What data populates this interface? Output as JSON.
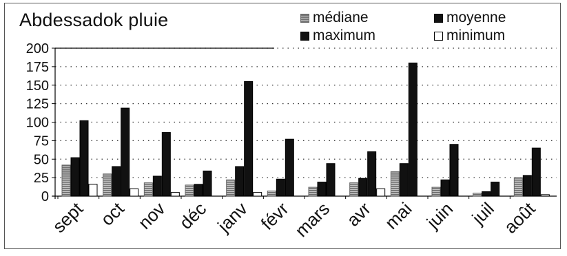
{
  "chart_data": {
    "type": "bar",
    "title": "Abdessadok pluie",
    "xlabel": "",
    "ylabel": "",
    "categories": [
      "sept",
      "oct",
      "nov",
      "déc",
      "janv",
      "févr",
      "mars",
      "avr",
      "mai",
      "juin",
      "juil",
      "août"
    ],
    "series": [
      {
        "name": "médiane",
        "values": [
          42,
          30,
          18,
          15,
          22,
          7,
          12,
          18,
          33,
          12,
          4,
          25
        ]
      },
      {
        "name": "moyenne",
        "values": [
          52,
          40,
          27,
          16,
          40,
          23,
          19,
          24,
          44,
          22,
          6,
          28
        ]
      },
      {
        "name": "maximum",
        "values": [
          102,
          119,
          86,
          34,
          155,
          77,
          44,
          60,
          180,
          70,
          19,
          65
        ]
      },
      {
        "name": "minimum",
        "values": [
          16,
          10,
          5,
          0,
          5,
          0,
          0,
          10,
          0,
          0,
          0,
          2
        ]
      }
    ],
    "ylim": [
      0,
      200
    ],
    "yticks": [
      0,
      25,
      50,
      75,
      100,
      125,
      150,
      175,
      200
    ],
    "grid": "horizontal-dotted",
    "legend_position": "top-right",
    "colors": {
      "mediane": "#888888",
      "moyenne": "#111111",
      "maximum": "#111111",
      "minimum": "#ffffff"
    }
  }
}
